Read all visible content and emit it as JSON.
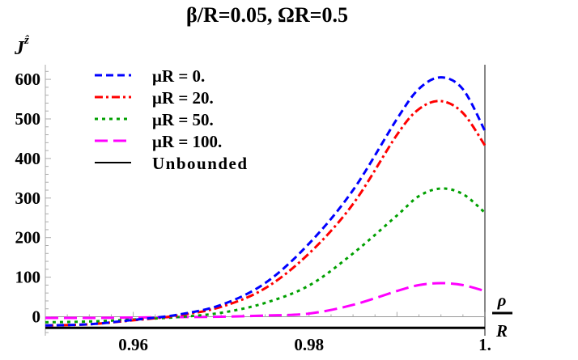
{
  "chart_data": {
    "type": "line",
    "title": "β/R=0.05, ΩR=0.5",
    "ylabel": "J^ẑ",
    "ylabel_main": "J",
    "ylabel_sup": "ẑ",
    "xlabel_num": "ρ",
    "xlabel_den": "R",
    "xlim": [
      0.95,
      1.0
    ],
    "ylim": [
      -48,
      637
    ],
    "x_ticks": [
      {
        "value": 0.96,
        "label": "0.96"
      },
      {
        "value": 0.98,
        "label": "0.98"
      },
      {
        "value": 1.0,
        "label": "1."
      }
    ],
    "y_ticks": [
      {
        "value": 0,
        "label": "0"
      },
      {
        "value": 100,
        "label": "100"
      },
      {
        "value": 200,
        "label": "200"
      },
      {
        "value": 300,
        "label": "300"
      },
      {
        "value": 400,
        "label": "400"
      },
      {
        "value": 500,
        "label": "500"
      },
      {
        "value": 600,
        "label": "600"
      }
    ],
    "grid": false,
    "legend_position": "top-left",
    "x": [
      0.95,
      0.955,
      0.96,
      0.965,
      0.97,
      0.975,
      0.98,
      0.985,
      0.99,
      0.9925,
      0.995,
      0.9975,
      1.0
    ],
    "series": [
      {
        "name": "μR = 0.",
        "color": "#0000ff",
        "style": "dashed",
        "values": [
          -22,
          -19,
          -8,
          5,
          30,
          85,
          185,
          320,
          500,
          576,
          605,
          575,
          470
        ]
      },
      {
        "name": "μR = 20.",
        "color": "#ff0000",
        "style": "dash-dot",
        "values": [
          -22,
          -19,
          -9,
          3,
          25,
          72,
          160,
          285,
          460,
          525,
          545,
          515,
          433
        ]
      },
      {
        "name": "μR = 50.",
        "color": "#00a000",
        "style": "dotted",
        "values": [
          -14,
          -12,
          -7,
          -1,
          10,
          35,
          79,
          160,
          256,
          305,
          324,
          310,
          263
        ]
      },
      {
        "name": "μR = 100.",
        "color": "#ff00ff",
        "style": "long-dashed",
        "values": [
          -3,
          -3,
          -2,
          -1,
          0,
          3,
          8,
          30,
          65,
          80,
          85,
          80,
          65
        ]
      },
      {
        "name": "Unbounded",
        "color": "#000000",
        "style": "solid",
        "values": [
          -28,
          -28,
          -28,
          -28,
          -28,
          -28,
          -28,
          -28,
          -28,
          -28,
          -28,
          -28,
          -28
        ]
      }
    ]
  }
}
